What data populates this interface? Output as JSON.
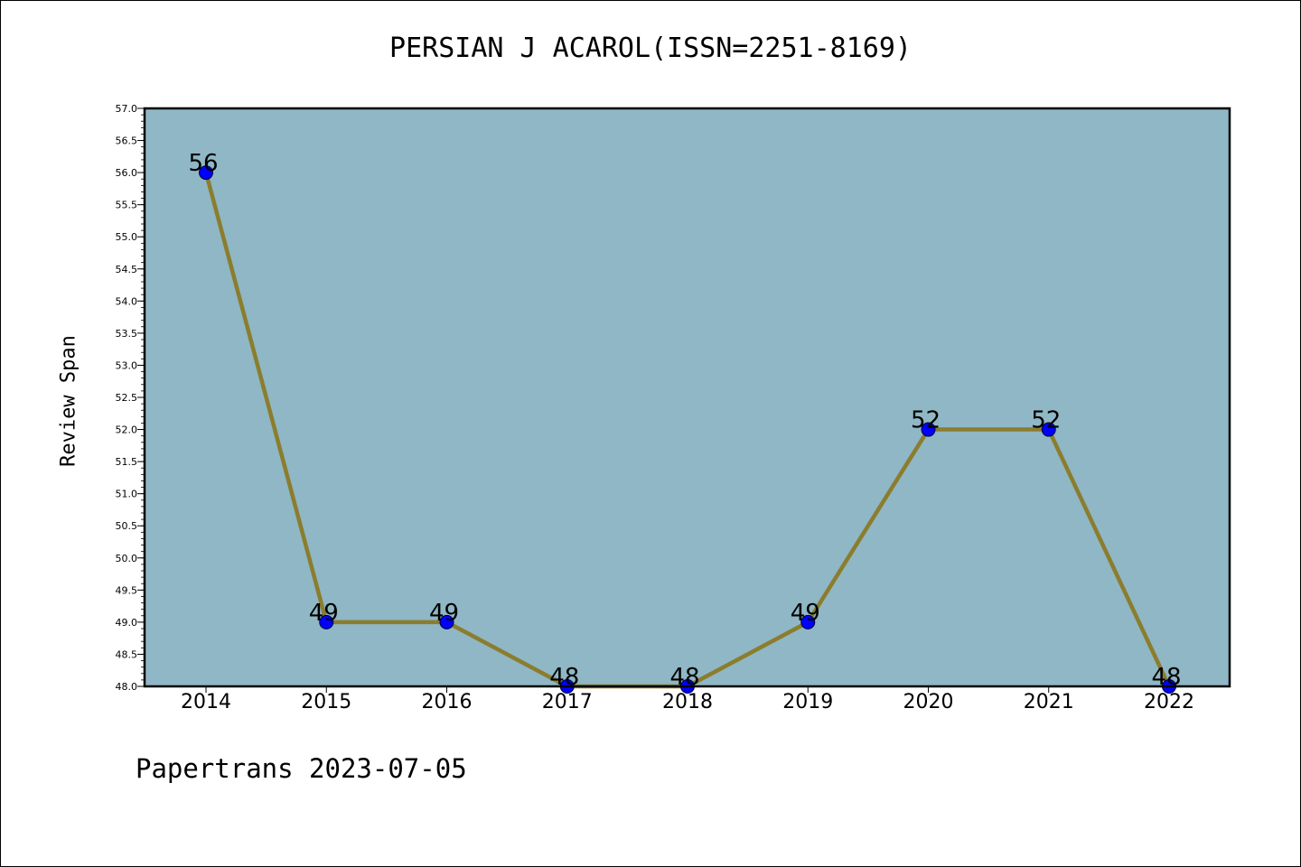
{
  "chart_data": {
    "type": "line",
    "title": "PERSIAN J ACAROL(ISSN=2251-8169)",
    "ylabel": "Review Span",
    "xlabel": "",
    "x": [
      "2014",
      "2015",
      "2016",
      "2017",
      "2018",
      "2019",
      "2020",
      "2021",
      "2022"
    ],
    "series": [
      {
        "values": [
          56,
          49,
          49,
          48,
          48,
          49,
          52,
          52,
          48
        ],
        "labels": [
          "56",
          "49",
          "49",
          "48",
          "48",
          "49",
          "52",
          "52",
          "48"
        ]
      }
    ],
    "ylim": [
      48.0,
      57.0
    ],
    "y_ticks": [
      "48.0",
      "48.5",
      "49.0",
      "49.5",
      "50.0",
      "50.5",
      "51.0",
      "51.5",
      "52.0",
      "52.5",
      "53.0",
      "53.5",
      "54.0",
      "54.5",
      "55.0",
      "55.5",
      "56.0",
      "56.5",
      "57.0"
    ],
    "grid": false,
    "colors": {
      "plot_background": "#8fb7c5",
      "line": "#8b7d2e",
      "marker": "#0000ff"
    }
  },
  "footer": {
    "note": "Papertrans 2023-07-05"
  }
}
